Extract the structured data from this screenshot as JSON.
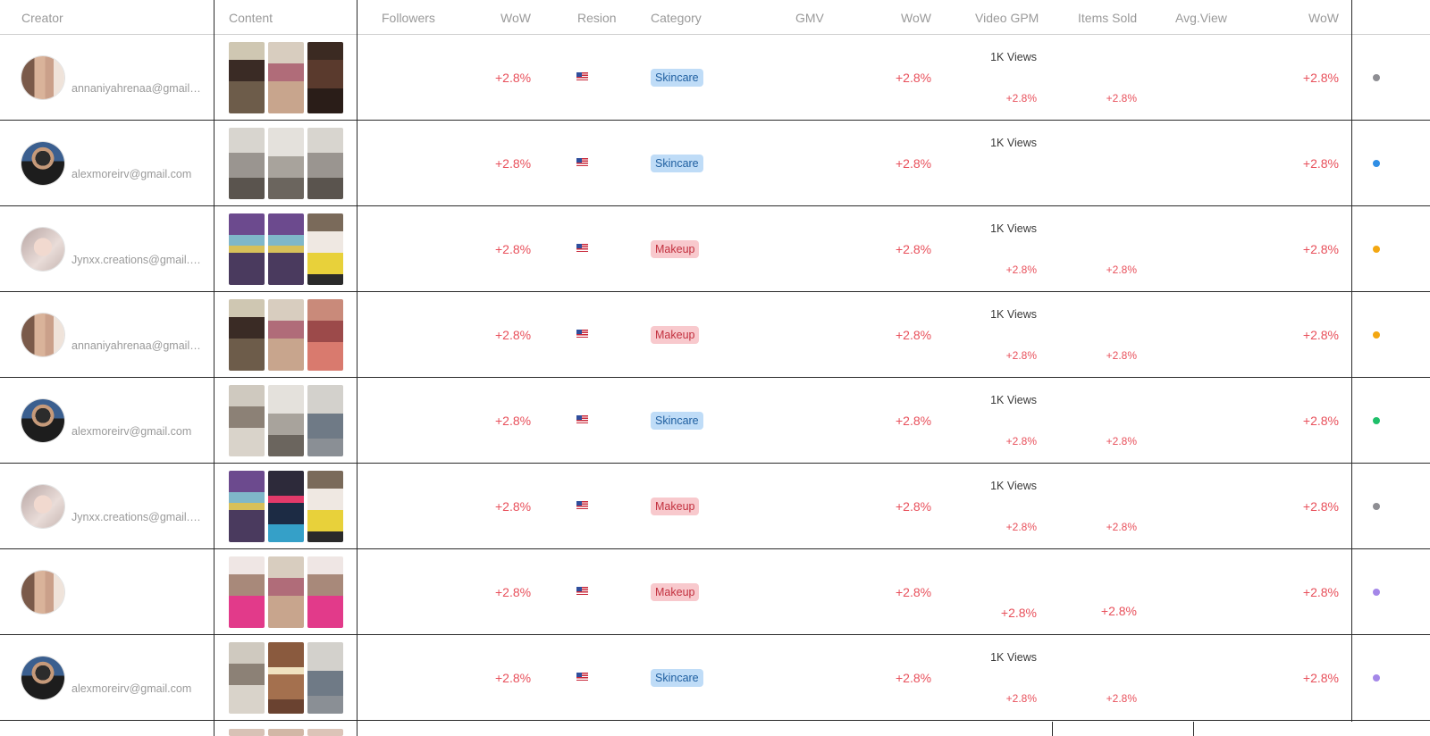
{
  "header": {
    "creator": "Creator",
    "content": "Content",
    "followers": "Followers",
    "wow1": "WoW",
    "region": "Resion",
    "category": "Category",
    "gmv": "GMV",
    "wow2": "WoW",
    "video_gpm": "Video GPM",
    "items_sold": "Items Sold",
    "avg_view": "Avg.View",
    "wow3": "WoW"
  },
  "colors": {
    "skincare_bg": "#bfdcf7",
    "skincare_text": "#1f5fa0",
    "makeup_bg": "#f8c9cd",
    "makeup_text": "#c2303e",
    "wow_red": "#e8505b",
    "status_gray": "#8e8e93",
    "status_blue": "#2f8ee5",
    "status_orange": "#f3a712",
    "status_green": "#1fbf6a",
    "status_purple": "#a487e8"
  },
  "rows": [
    {
      "email": "annaniyahrenaa@gmail.com",
      "wow1": "+2.8%",
      "region": "us-flag",
      "category": "Skincare",
      "wow2": "+2.8%",
      "views": "1K Views",
      "gpm_wow": "+2.8%",
      "items_wow": "+2.8%",
      "wow3": "+2.8%",
      "status": "status_gray",
      "avatar": "a",
      "thumbs": [
        "t1",
        "t2",
        "t3"
      ]
    },
    {
      "email": "alexmoreirv@gmail.com",
      "wow1": "+2.8%",
      "region": "us-flag",
      "category": "Skincare",
      "wow2": "+2.8%",
      "views": "1K Views",
      "gpm_wow": "",
      "items_wow": "",
      "wow3": "+2.8%",
      "status": "status_blue",
      "avatar": "b",
      "thumbs": [
        "t4",
        "t5",
        "t4"
      ]
    },
    {
      "email": "Jynxx.creations@gmail.com",
      "wow1": "+2.8%",
      "region": "us-flag",
      "category": "Makeup",
      "wow2": "+2.8%",
      "views": "1K Views",
      "gpm_wow": "+2.8%",
      "items_wow": "+2.8%",
      "wow3": "+2.8%",
      "status": "status_orange",
      "avatar": "c",
      "thumbs": [
        "t6",
        "t6",
        "t7"
      ]
    },
    {
      "email": "annaniyahrenaa@gmail.com",
      "wow1": "+2.8%",
      "region": "us-flag",
      "category": "Makeup",
      "wow2": "+2.8%",
      "views": "1K Views",
      "gpm_wow": "+2.8%",
      "items_wow": "+2.8%",
      "wow3": "+2.8%",
      "status": "status_orange",
      "avatar": "a",
      "thumbs": [
        "t1",
        "t2",
        "t8"
      ]
    },
    {
      "email": "alexmoreirv@gmail.com",
      "wow1": "+2.8%",
      "region": "us-flag",
      "category": "Skincare",
      "wow2": "+2.8%",
      "views": "1K Views",
      "gpm_wow": "+2.8%",
      "items_wow": "+2.8%",
      "wow3": "+2.8%",
      "status": "status_green",
      "avatar": "b",
      "thumbs": [
        "t9",
        "t5",
        "t10"
      ]
    },
    {
      "email": "Jynxx.creations@gmail.com",
      "wow1": "+2.8%",
      "region": "us-flag",
      "category": "Makeup",
      "wow2": "+2.8%",
      "views": "1K Views",
      "gpm_wow": "+2.8%",
      "items_wow": "+2.8%",
      "wow3": "+2.8%",
      "status": "status_gray",
      "avatar": "c",
      "thumbs": [
        "t6",
        "t11",
        "t7"
      ]
    },
    {
      "email": "",
      "wow1": "+2.8%",
      "region": "us-flag",
      "category": "Makeup",
      "wow2": "+2.8%",
      "views": "",
      "gpm_wow": "+2.8%",
      "items_wow": "+2.8%",
      "wow3": "+2.8%",
      "status": "status_purple",
      "avatar": "a",
      "thumbs": [
        "t12",
        "t2",
        "t12"
      ],
      "big_wow": true
    },
    {
      "email": "alexmoreirv@gmail.com",
      "wow1": "+2.8%",
      "region": "us-flag",
      "category": "Skincare",
      "wow2": "+2.8%",
      "views": "1K Views",
      "gpm_wow": "+2.8%",
      "items_wow": "+2.8%",
      "wow3": "+2.8%",
      "status": "status_purple",
      "avatar": "b",
      "thumbs": [
        "t9",
        "t13",
        "t10"
      ]
    }
  ]
}
